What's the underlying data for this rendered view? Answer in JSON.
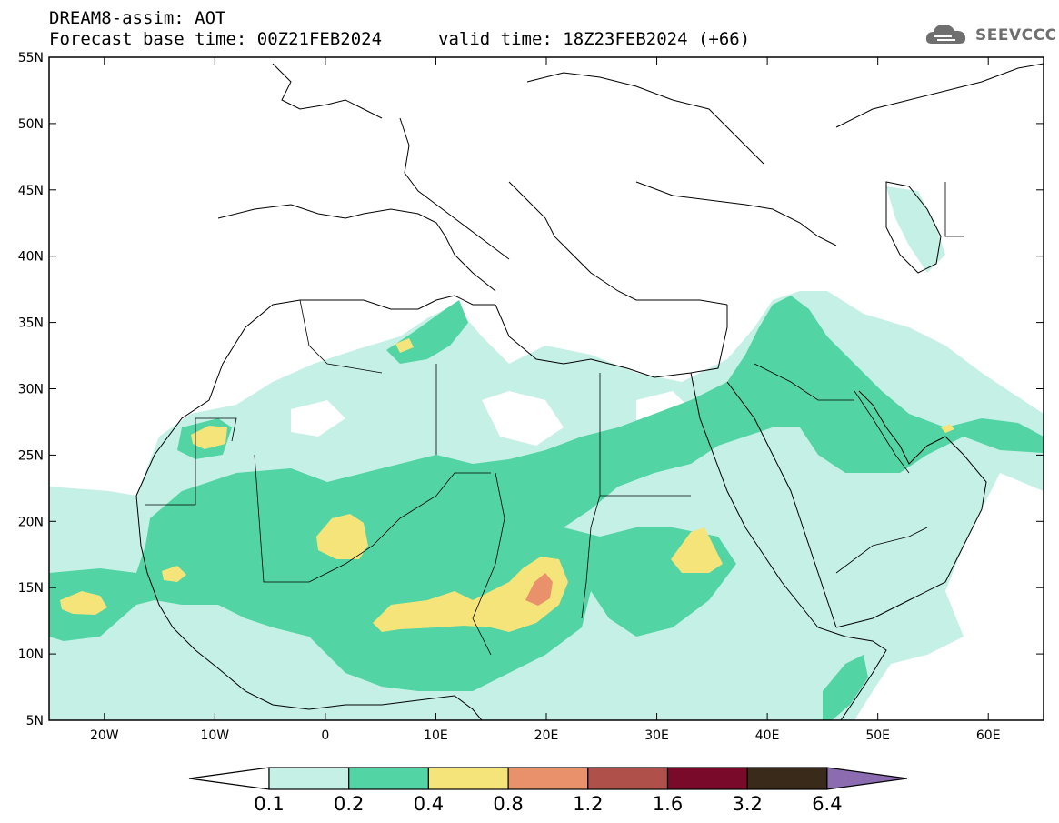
{
  "header": {
    "line1": "DREAM8-assim: AOT",
    "base_time": "Forecast base time: 00Z21FEB2024",
    "valid_time": "valid time: 18Z23FEB2024 (+66)"
  },
  "logo": {
    "icon": "cloud-icon",
    "text": "SEEVCCC"
  },
  "map": {
    "lat_ticks": [
      "55N",
      "50N",
      "45N",
      "40N",
      "35N",
      "30N",
      "25N",
      "20N",
      "15N",
      "10N",
      "5N"
    ],
    "lon_ticks": [
      "20W",
      "10W",
      "0",
      "10E",
      "20E",
      "30E",
      "40E",
      "50E",
      "60E"
    ],
    "extent": {
      "lon": [
        -25,
        65
      ],
      "lat": [
        5,
        55
      ]
    }
  },
  "legend": {
    "levels": [
      "0.1",
      "0.2",
      "0.4",
      "0.8",
      "1.2",
      "1.6",
      "3.2",
      "6.4"
    ],
    "colors": [
      "#ffffff",
      "#c4f0e6",
      "#52d4a4",
      "#f5e47a",
      "#e8916a",
      "#b0504a",
      "#7a0a2a",
      "#3a2a1a",
      "#8c6bb0"
    ]
  }
}
